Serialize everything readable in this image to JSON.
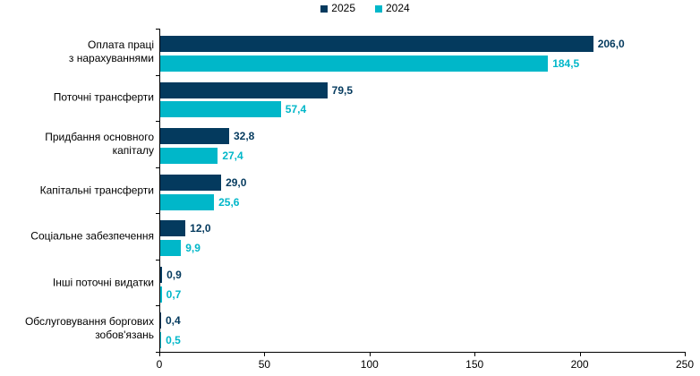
{
  "legend": {
    "items": [
      {
        "label": "2025",
        "color": "#043A5E"
      },
      {
        "label": "2024",
        "color": "#00B7C9"
      }
    ]
  },
  "chart_data": {
    "type": "bar",
    "orientation": "horizontal",
    "title": "",
    "xlabel": "",
    "ylabel": "",
    "xlim": [
      0,
      250
    ],
    "x_ticks": [
      0,
      50,
      100,
      150,
      200,
      250
    ],
    "grid": false,
    "legend_position": "top-center",
    "decimal_separator": ",",
    "categories": [
      {
        "label": "Оплата праці з нарахуваннями",
        "lines": [
          "Оплата праці",
          "з нарахуваннями"
        ]
      },
      {
        "label": "Поточні трансферти",
        "lines": [
          "Поточні трансферти"
        ]
      },
      {
        "label": "Придбання основного капіталу",
        "lines": [
          "Придбання основного",
          "капіталу"
        ]
      },
      {
        "label": "Капітальні трансферти",
        "lines": [
          "Капітальні трансферти"
        ]
      },
      {
        "label": "Соціальне забезпечення",
        "lines": [
          "Соціальне забезпечення"
        ]
      },
      {
        "label": "Інші поточні видатки",
        "lines": [
          "Інші поточні видатки"
        ]
      },
      {
        "label": "Обслуговування боргових зобов'язань",
        "lines": [
          "Обслуговування боргових",
          "зобов'язань"
        ]
      }
    ],
    "series": [
      {
        "name": "2025",
        "color": "#043A5E",
        "values": [
          206.0,
          79.5,
          32.8,
          29.0,
          12.0,
          0.9,
          0.4
        ],
        "value_labels": [
          "206,0",
          "79,5",
          "32,8",
          "29,0",
          "12,0",
          "0,9",
          "0,4"
        ]
      },
      {
        "name": "2024",
        "color": "#00B7C9",
        "values": [
          184.5,
          57.4,
          27.4,
          25.6,
          9.9,
          0.7,
          0.5
        ],
        "value_labels": [
          "184,5",
          "57,4",
          "27,4",
          "25,6",
          "9,9",
          "0,7",
          "0,5"
        ]
      }
    ]
  }
}
